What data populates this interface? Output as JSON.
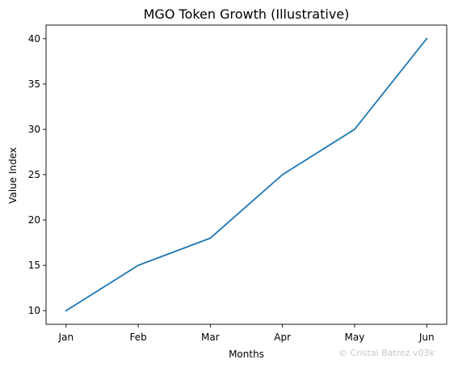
{
  "chart_data": {
    "type": "line",
    "title": "MGO Token Growth (Illustrative)",
    "xlabel": "Months",
    "ylabel": "Value Index",
    "categories": [
      "Jan",
      "Feb",
      "Mar",
      "Apr",
      "May",
      "Jun"
    ],
    "series": [
      {
        "values": [
          10,
          15,
          18,
          25,
          30,
          40
        ],
        "color": "#1f77b4"
      }
    ],
    "ylim": [
      8.5,
      41.5
    ],
    "yticks": [
      10,
      15,
      20,
      25,
      30,
      35,
      40
    ],
    "grid": false,
    "legend": "none"
  },
  "watermark": {
    "text": "© Cristal Batrez v03k"
  }
}
